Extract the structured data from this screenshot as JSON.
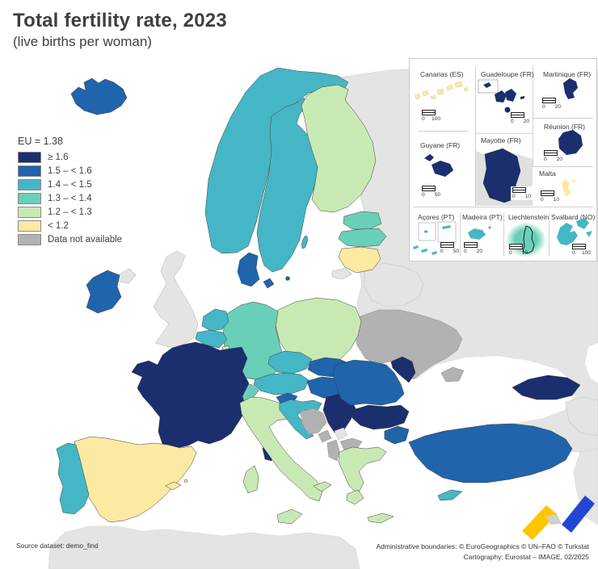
{
  "title": "Total fertility rate, 2023",
  "subtitle": "(live births per woman)",
  "legend": {
    "eu_label": "EU = 1.38",
    "classes": [
      {
        "key": "c1",
        "label": "≥ 1.6",
        "color": "#1b2e6e"
      },
      {
        "key": "c2",
        "label": "1.5 – < 1.6",
        "color": "#2064ab"
      },
      {
        "key": "c3",
        "label": "1.4 – < 1.5",
        "color": "#45b6c5"
      },
      {
        "key": "c4",
        "label": "1.3 – < 1.4",
        "color": "#69cfb8"
      },
      {
        "key": "c5",
        "label": "1.2 – < 1.3",
        "color": "#c9e9b4"
      },
      {
        "key": "c6",
        "label": "< 1.2",
        "color": "#fce9a2"
      },
      {
        "key": "c7",
        "label": "Data not available",
        "color": "#b2b2b2"
      }
    ],
    "other_color": "#e4e4e4"
  },
  "map": {
    "sea_color": "#ffffff",
    "countries": {
      "iceland": "c2",
      "norway": "c3",
      "sweden": "c3",
      "finland": "c5",
      "estonia": "c4",
      "latvia": "c4",
      "lithuania": "c6",
      "kaliningrad": "other",
      "denmark": "c2",
      "bornholm": "c2",
      "gotland": "c3",
      "ireland": "c2",
      "united-kingdom": "other",
      "northern-ireland": "other",
      "netherlands": "c3",
      "belgium": "c3",
      "luxembourg": "c5",
      "germany": "c4",
      "poland": "c5",
      "czechia": "c3",
      "slovakia": "c2",
      "austria": "c3",
      "switzerland": "c4",
      "france": "c1",
      "corsica": "c1",
      "spain": "c6",
      "balearics": "c6",
      "portugal": "c3",
      "italy": "c5",
      "sicily": "c5",
      "sardinia": "c5",
      "slovenia": "c2",
      "croatia": "c3",
      "hungary": "c2",
      "romania": "c2",
      "moldova": "c1",
      "ukraine": "c7",
      "crimea": "c7",
      "belarus": "other",
      "russia-area": "other",
      "bulgaria": "c1",
      "serbia": "c1",
      "bosnia-herzegovina": "c7",
      "montenegro": "c7",
      "kosovo": "other",
      "north-macedonia": "c7",
      "albania": "c7",
      "greece": "c5",
      "turkey": "c2",
      "cyprus": "c3",
      "georgia": "c1",
      "armenia-azerbaijan": "other",
      "north-africa": "other",
      "middle-east": "other"
    }
  },
  "insets": [
    {
      "label": "Canarias (ES)",
      "class": "c6",
      "scale": {
        "zero": "0",
        "max": "100"
      }
    },
    {
      "label": "Guadeloupe (FR)",
      "class": "c1",
      "scale": {
        "zero": "0",
        "max": "20"
      }
    },
    {
      "label": "Martinique (FR)",
      "class": "c1",
      "scale": {
        "zero": "0",
        "max": "20"
      }
    },
    {
      "label": "Réunion (FR)",
      "class": "c1",
      "scale": {
        "zero": "0",
        "max": "20"
      }
    },
    {
      "label": "Malta",
      "class": "c6",
      "scale": {
        "zero": "0",
        "max": "10"
      }
    },
    {
      "label": "Guyane (FR)",
      "class": "c1",
      "scale": {
        "zero": "0",
        "max": "50"
      }
    },
    {
      "label": "Mayotte (FR)",
      "class": "c1",
      "scale": {
        "zero": "0",
        "max": "10"
      }
    },
    {
      "label": "Açores (PT)",
      "class": "c3",
      "scale": {
        "zero": "0",
        "max": "50"
      }
    },
    {
      "label": "Madeira (PT)",
      "class": "c3",
      "scale": {
        "zero": "0",
        "max": "20"
      }
    },
    {
      "label": "Liechtenstein",
      "class": "c4",
      "scale": {
        "zero": "0",
        "max": "10"
      }
    },
    {
      "label": "Svalbard (NO)",
      "class": "c3",
      "scale": {
        "zero": "0",
        "max": "100"
      }
    }
  ],
  "footer": {
    "source": "Source dataset: demo_find",
    "boundaries": "Administrative boundaries: © EuroGeographics © UN–FAO © Turkstat",
    "cartography": "Cartography: Eurostat – IMAGE, 02/2025"
  },
  "logo": {
    "yellow": "#fdc500",
    "blue": "#2347d5",
    "gray": "#cfcfcf"
  }
}
